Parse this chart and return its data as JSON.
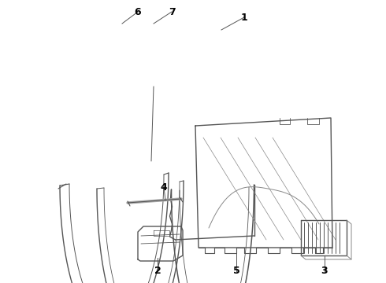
{
  "bg_color": "#ffffff",
  "line_color": "#555555",
  "label_color": "#000000",
  "figsize": [
    4.9,
    3.6
  ],
  "dpi": 100
}
